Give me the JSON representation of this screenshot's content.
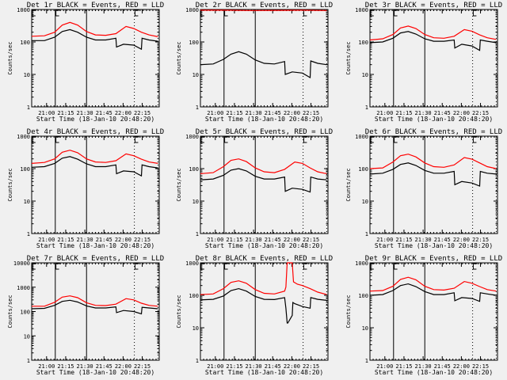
{
  "figure": {
    "background": "#f0f0f0",
    "colors": {
      "events": "#000000",
      "lld": "#ff0000",
      "axes": "#000000"
    },
    "marker_labels": [
      "E",
      "F",
      "E"
    ]
  },
  "chart_data": [
    {
      "type": "line",
      "title": "Det 1r BLACK = Events, RED = LLD",
      "xlabel": "Start Time (18-Jan-10 20:48:20)",
      "ylabel": "Counts/sec",
      "yscale": "log",
      "ylim": [
        1,
        1000
      ],
      "yticks": [
        "1",
        "10",
        "100",
        "1000"
      ],
      "xlim_minutes": [
        0,
        100
      ],
      "xticks": [
        "21:00",
        "21:15",
        "21:30",
        "21:45",
        "22:00",
        "22:15"
      ],
      "xtick_minutes": [
        11.67,
        26.67,
        41.67,
        56.67,
        71.67,
        86.67
      ],
      "solid_lines_minutes": [
        18.5,
        43
      ],
      "dotted_lines_minutes": [
        80.5,
        99
      ],
      "series": [
        {
          "name": "Events",
          "color": "#000000",
          "x": [
            0,
            10,
            18,
            24,
            30,
            36,
            43,
            50,
            58,
            66,
            66.5,
            72,
            80,
            86,
            86.5,
            92,
            99
          ],
          "y": [
            110,
            110,
            140,
            210,
            240,
            200,
            140,
            115,
            115,
            130,
            70,
            85,
            80,
            60,
            130,
            115,
            105
          ]
        },
        {
          "name": "LLD",
          "color": "#ff0000",
          "x": [
            0,
            10,
            18,
            24,
            30,
            36,
            43,
            50,
            58,
            66,
            74,
            80,
            86,
            92,
            99
          ],
          "y": [
            150,
            155,
            200,
            330,
            400,
            330,
            210,
            165,
            160,
            180,
            300,
            260,
            200,
            165,
            145
          ]
        }
      ]
    },
    {
      "type": "line",
      "title": "Det 2r BLACK = Events, RED = LLD",
      "xlabel": "Start Time (18-Jan-10 20:48:20)",
      "ylabel": "Counts/sec",
      "yscale": "log",
      "ylim": [
        1,
        1000
      ],
      "yticks": [
        "1",
        "10",
        "100",
        "1000"
      ],
      "xlim_minutes": [
        0,
        100
      ],
      "xticks": [
        "21:00",
        "21:15",
        "21:30",
        "21:45",
        "22:00",
        "22:15"
      ],
      "xtick_minutes": [
        11.67,
        26.67,
        41.67,
        56.67,
        71.67,
        86.67
      ],
      "solid_lines_minutes": [
        18.5,
        43
      ],
      "dotted_lines_minutes": [
        80.5,
        99
      ],
      "series": [
        {
          "name": "Events",
          "color": "#000000",
          "x": [
            0,
            10,
            18,
            24,
            30,
            36,
            43,
            50,
            58,
            66,
            66.5,
            72,
            80,
            86,
            86.5,
            92,
            99
          ],
          "y": [
            20,
            21,
            29,
            42,
            50,
            42,
            28,
            22,
            21,
            25,
            10,
            12,
            11,
            8,
            26,
            22,
            20
          ]
        },
        {
          "name": "LLD",
          "color": "#ff0000",
          "x": [
            0,
            20,
            40,
            60,
            80,
            99
          ],
          "y": [
            950,
            950,
            930,
            940,
            950,
            930
          ]
        }
      ]
    },
    {
      "type": "line",
      "title": "Det 3r BLACK = Events, RED = LLD",
      "xlabel": "Start Time (18-Jan-10 20:48:20)",
      "ylabel": "Counts/sec",
      "yscale": "log",
      "ylim": [
        1,
        1000
      ],
      "yticks": [
        "1",
        "10",
        "100",
        "1000"
      ],
      "xlim_minutes": [
        0,
        100
      ],
      "xticks": [
        "21:00",
        "21:15",
        "21:30",
        "21:45",
        "22:00",
        "22:15"
      ],
      "xtick_minutes": [
        11.67,
        26.67,
        41.67,
        56.67,
        71.67,
        86.67
      ],
      "solid_lines_minutes": [
        18.5,
        43
      ],
      "dotted_lines_minutes": [
        80.5,
        99
      ],
      "series": [
        {
          "name": "Events",
          "color": "#000000",
          "x": [
            0,
            10,
            18,
            24,
            30,
            36,
            43,
            50,
            58,
            66,
            66.5,
            72,
            80,
            86,
            86.5,
            92,
            99
          ],
          "y": [
            95,
            100,
            130,
            190,
            210,
            175,
            125,
            105,
            105,
            115,
            65,
            85,
            75,
            55,
            115,
            105,
            95
          ]
        },
        {
          "name": "LLD",
          "color": "#ff0000",
          "x": [
            0,
            10,
            18,
            24,
            30,
            36,
            43,
            50,
            58,
            66,
            74,
            80,
            86,
            92,
            99
          ],
          "y": [
            115,
            125,
            170,
            270,
            310,
            260,
            170,
            135,
            130,
            150,
            240,
            215,
            165,
            135,
            120
          ]
        }
      ]
    },
    {
      "type": "line",
      "title": "Det 4r BLACK = Events, RED = LLD",
      "xlabel": "Start Time (18-Jan-10 20:48:20)",
      "ylabel": "Counts/sec",
      "yscale": "log",
      "ylim": [
        1,
        1000
      ],
      "yticks": [
        "1",
        "10",
        "100",
        "1000"
      ],
      "xlim_minutes": [
        0,
        100
      ],
      "xticks": [
        "21:00",
        "21:15",
        "21:30",
        "21:45",
        "22:00",
        "22:15"
      ],
      "xtick_minutes": [
        11.67,
        26.67,
        41.67,
        56.67,
        71.67,
        86.67
      ],
      "solid_lines_minutes": [
        18.5,
        43
      ],
      "dotted_lines_minutes": [
        80.5,
        99
      ],
      "series": [
        {
          "name": "Events",
          "color": "#000000",
          "x": [
            0,
            10,
            18,
            24,
            30,
            36,
            43,
            50,
            58,
            66,
            66.5,
            72,
            80,
            86,
            86.5,
            92,
            99
          ],
          "y": [
            110,
            115,
            145,
            210,
            235,
            195,
            140,
            115,
            115,
            130,
            70,
            85,
            80,
            60,
            130,
            115,
            105
          ]
        },
        {
          "name": "LLD",
          "color": "#ff0000",
          "x": [
            0,
            10,
            18,
            24,
            30,
            36,
            43,
            50,
            58,
            66,
            74,
            80,
            86,
            92,
            99
          ],
          "y": [
            145,
            155,
            200,
            320,
            370,
            310,
            200,
            160,
            155,
            175,
            285,
            250,
            195,
            160,
            145
          ]
        }
      ]
    },
    {
      "type": "line",
      "title": "Det 5r BLACK = Events, RED = LLD",
      "xlabel": "Start Time (18-Jan-10 20:48:20)",
      "ylabel": "Counts/sec",
      "yscale": "log",
      "ylim": [
        1,
        1000
      ],
      "yticks": [
        "1",
        "10",
        "100",
        "1000"
      ],
      "xlim_minutes": [
        0,
        100
      ],
      "xticks": [
        "21:00",
        "21:15",
        "21:30",
        "21:45",
        "22:00",
        "22:15"
      ],
      "xtick_minutes": [
        11.67,
        26.67,
        41.67,
        56.67,
        71.67,
        86.67
      ],
      "solid_lines_minutes": [
        18.5,
        43
      ],
      "dotted_lines_minutes": [
        80.5,
        99
      ],
      "series": [
        {
          "name": "Events",
          "color": "#000000",
          "x": [
            0,
            10,
            18,
            24,
            30,
            36,
            43,
            50,
            58,
            66,
            66.5,
            72,
            80,
            86,
            86.5,
            92,
            99
          ],
          "y": [
            45,
            48,
            62,
            90,
            100,
            85,
            58,
            48,
            48,
            55,
            20,
            25,
            23,
            19,
            55,
            48,
            45
          ]
        },
        {
          "name": "LLD",
          "color": "#ff0000",
          "x": [
            0,
            10,
            18,
            24,
            30,
            36,
            43,
            50,
            58,
            66,
            74,
            80,
            86,
            92,
            99
          ],
          "y": [
            70,
            75,
            115,
            180,
            200,
            165,
            105,
            80,
            75,
            95,
            160,
            145,
            105,
            80,
            70
          ]
        }
      ]
    },
    {
      "type": "line",
      "title": "Det 6r BLACK = Events, RED = LLD",
      "xlabel": "Start Time (18-Jan-10 20:48:20)",
      "ylabel": "Counts/sec",
      "yscale": "log",
      "ylim": [
        1,
        1000
      ],
      "yticks": [
        "1",
        "10",
        "100",
        "1000"
      ],
      "xlim_minutes": [
        0,
        100
      ],
      "xticks": [
        "21:00",
        "21:15",
        "21:30",
        "21:45",
        "22:00",
        "22:15"
      ],
      "xtick_minutes": [
        11.67,
        26.67,
        41.67,
        56.67,
        71.67,
        86.67
      ],
      "solid_lines_minutes": [
        18.5,
        43
      ],
      "dotted_lines_minutes": [
        80.5,
        99
      ],
      "series": [
        {
          "name": "Events",
          "color": "#000000",
          "x": [
            0,
            10,
            18,
            24,
            30,
            36,
            43,
            50,
            58,
            66,
            66.5,
            72,
            80,
            86,
            86.5,
            92,
            99
          ],
          "y": [
            68,
            72,
            95,
            135,
            150,
            125,
            88,
            72,
            72,
            82,
            32,
            40,
            36,
            29,
            82,
            72,
            68
          ]
        },
        {
          "name": "LLD",
          "color": "#ff0000",
          "x": [
            0,
            10,
            18,
            24,
            30,
            36,
            43,
            50,
            58,
            66,
            74,
            80,
            86,
            92,
            99
          ],
          "y": [
            100,
            105,
            160,
            250,
            280,
            230,
            150,
            115,
            110,
            130,
            220,
            195,
            150,
            115,
            100
          ]
        }
      ]
    },
    {
      "type": "line",
      "title": "Det 7r BLACK = Events, RED = LLD",
      "xlabel": "Start Time (18-Jan-10 20:48:20)",
      "ylabel": "Counts/sec",
      "yscale": "log",
      "ylim": [
        1,
        10000
      ],
      "yticks": [
        "1",
        "10",
        "100",
        "1000",
        "10000"
      ],
      "xlim_minutes": [
        0,
        100
      ],
      "xticks": [
        "21:00",
        "21:15",
        "21:30",
        "21:45",
        "22:00",
        "22:15"
      ],
      "xtick_minutes": [
        11.67,
        26.67,
        41.67,
        56.67,
        71.67,
        86.67
      ],
      "solid_lines_minutes": [
        18.5,
        43
      ],
      "dotted_lines_minutes": [
        80.5,
        99
      ],
      "series": [
        {
          "name": "Events",
          "color": "#000000",
          "x": [
            0,
            10,
            18,
            24,
            30,
            36,
            43,
            50,
            58,
            66,
            66.5,
            72,
            80,
            86,
            86.5,
            92,
            99
          ],
          "y": [
            130,
            135,
            180,
            260,
            290,
            245,
            170,
            140,
            140,
            155,
            90,
            110,
            100,
            80,
            150,
            140,
            130
          ]
        },
        {
          "name": "LLD",
          "color": "#ff0000",
          "x": [
            0,
            10,
            18,
            24,
            30,
            36,
            43,
            50,
            58,
            66,
            74,
            80,
            86,
            92,
            99
          ],
          "y": [
            165,
            165,
            240,
            390,
            440,
            370,
            230,
            180,
            175,
            200,
            340,
            300,
            220,
            180,
            165
          ]
        }
      ]
    },
    {
      "type": "line",
      "title": "Det 8r BLACK = Events, RED = LLD",
      "xlabel": "Start Time (18-Jan-10 20:48:20)",
      "ylabel": "Counts/sec",
      "yscale": "log",
      "ylim": [
        1,
        1000
      ],
      "yticks": [
        "1",
        "10",
        "100",
        "1000"
      ],
      "xlim_minutes": [
        0,
        100
      ],
      "xticks": [
        "21:00",
        "21:15",
        "21:30",
        "21:45",
        "22:00",
        "22:15"
      ],
      "xtick_minutes": [
        11.67,
        26.67,
        41.67,
        56.67,
        71.67,
        86.67
      ],
      "solid_lines_minutes": [
        18.5,
        43
      ],
      "dotted_lines_minutes": [
        80.5,
        99
      ],
      "series": [
        {
          "name": "Events",
          "color": "#000000",
          "x": [
            0,
            10,
            18,
            24,
            30,
            36,
            43,
            50,
            58,
            66,
            67,
            68,
            68.5,
            72,
            72.5,
            74,
            80,
            86,
            86.5,
            92,
            99
          ],
          "y": [
            72,
            75,
            95,
            140,
            160,
            135,
            92,
            75,
            74,
            85,
            40,
            14,
            14,
            24,
            60,
            55,
            45,
            40,
            85,
            75,
            70
          ]
        },
        {
          "name": "LLD",
          "color": "#ff0000",
          "x": [
            0,
            10,
            18,
            24,
            30,
            36,
            43,
            50,
            58,
            66,
            67,
            68,
            72,
            73,
            76,
            80,
            86,
            92,
            99
          ],
          "y": [
            105,
            110,
            160,
            250,
            280,
            235,
            150,
            115,
            110,
            135,
            180,
            1000,
            1000,
            260,
            220,
            200,
            160,
            125,
            105
          ]
        }
      ]
    },
    {
      "type": "line",
      "title": "Det 9r BLACK = Events, RED = LLD",
      "xlabel": "Start Time (18-Jan-10 20:48:20)",
      "ylabel": "Counts/sec",
      "yscale": "log",
      "ylim": [
        1,
        1000
      ],
      "yticks": [
        "1",
        "10",
        "100",
        "1000"
      ],
      "xlim_minutes": [
        0,
        100
      ],
      "xticks": [
        "21:00",
        "21:15",
        "21:30",
        "21:45",
        "22:00",
        "22:15"
      ],
      "xtick_minutes": [
        11.67,
        26.67,
        41.67,
        56.67,
        71.67,
        86.67
      ],
      "solid_lines_minutes": [
        18.5,
        43
      ],
      "dotted_lines_minutes": [
        80.5,
        99
      ],
      "series": [
        {
          "name": "Events",
          "color": "#000000",
          "x": [
            0,
            10,
            18,
            24,
            30,
            36,
            43,
            50,
            58,
            66,
            66.5,
            72,
            80,
            86,
            86.5,
            92,
            99
          ],
          "y": [
            100,
            105,
            140,
            200,
            225,
            185,
            130,
            105,
            105,
            120,
            68,
            85,
            80,
            65,
            120,
            110,
            100
          ]
        },
        {
          "name": "LLD",
          "color": "#ff0000",
          "x": [
            0,
            10,
            18,
            24,
            30,
            36,
            43,
            50,
            58,
            66,
            74,
            80,
            86,
            92,
            99
          ],
          "y": [
            135,
            140,
            190,
            310,
            360,
            300,
            190,
            150,
            145,
            165,
            265,
            235,
            185,
            150,
            135
          ]
        }
      ]
    }
  ]
}
